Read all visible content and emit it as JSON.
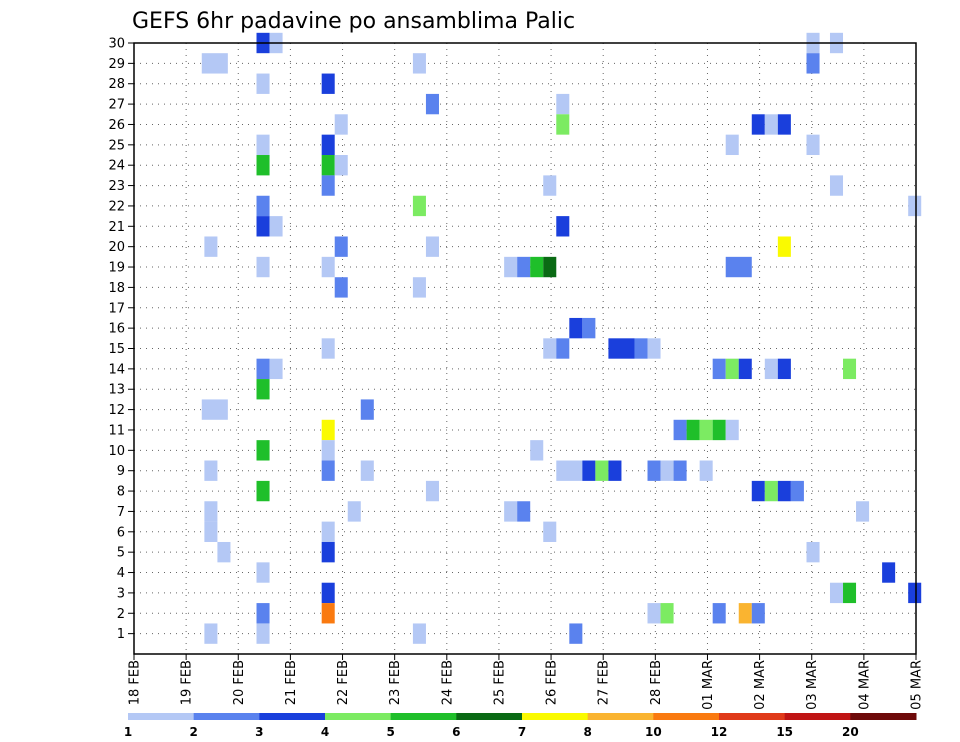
{
  "chart_data": {
    "type": "heatmap",
    "title": "GEFS 6hr padavine po ansamblima Palic",
    "xlabel": "",
    "ylabel": "",
    "x_tick_labels": [
      "18 FEB",
      "19 FEB",
      "20 FEB",
      "21 FEB",
      "22 FEB",
      "23 FEB",
      "24 FEB",
      "25 FEB",
      "26 FEB",
      "27 FEB",
      "28 FEB",
      "01 MAR",
      "02 MAR",
      "03 MAR",
      "04 MAR",
      "05 MAR"
    ],
    "x_range_days": [
      0,
      15
    ],
    "y_tick_labels": [
      "1",
      "2",
      "3",
      "4",
      "5",
      "6",
      "7",
      "8",
      "9",
      "10",
      "11",
      "12",
      "13",
      "14",
      "15",
      "16",
      "17",
      "18",
      "19",
      "20",
      "21",
      "22",
      "23",
      "24",
      "25",
      "26",
      "27",
      "28",
      "29",
      "30"
    ],
    "y_range": [
      0,
      30
    ],
    "grid": true,
    "legend_position": "bottom",
    "legend": {
      "labels": [
        "1",
        "2",
        "3",
        "4",
        "5",
        "6",
        "7",
        "8",
        "10",
        "12",
        "15",
        "20"
      ],
      "colors": [
        "#b4c8f5",
        "#5a82ee",
        "#1a3fdc",
        "#7ceb62",
        "#1fbf2a",
        "#0a6a14",
        "#fafa00",
        "#fab430",
        "#fa7a10",
        "#e03a1a",
        "#c01414",
        "#6e0a0a"
      ]
    },
    "cells": [
      {
        "member": 30,
        "x": [
          2.35,
          2.6
        ],
        "c": 2
      },
      {
        "member": 30,
        "x": [
          2.6,
          2.85
        ],
        "c": 0
      },
      {
        "member": 30,
        "x": [
          12.9,
          13.15
        ],
        "c": 0
      },
      {
        "member": 30,
        "x": [
          13.35,
          13.6
        ],
        "c": 0
      },
      {
        "member": 29,
        "x": [
          1.3,
          1.8
        ],
        "c": 0
      },
      {
        "member": 29,
        "x": [
          5.35,
          5.6
        ],
        "c": 0
      },
      {
        "member": 29,
        "x": [
          12.9,
          13.15
        ],
        "c": 1
      },
      {
        "member": 28,
        "x": [
          2.35,
          2.6
        ],
        "c": 0
      },
      {
        "member": 28,
        "x": [
          3.6,
          3.85
        ],
        "c": 2
      },
      {
        "member": 27,
        "x": [
          5.6,
          5.85
        ],
        "c": 1
      },
      {
        "member": 27,
        "x": [
          8.1,
          8.35
        ],
        "c": 0
      },
      {
        "member": 26,
        "x": [
          3.85,
          4.1
        ],
        "c": 0
      },
      {
        "member": 26,
        "x": [
          8.1,
          8.35
        ],
        "c": 3
      },
      {
        "member": 26,
        "x": [
          11.85,
          12.1
        ],
        "c": 2
      },
      {
        "member": 26,
        "x": [
          12.1,
          12.35
        ],
        "c": 0
      },
      {
        "member": 26,
        "x": [
          12.35,
          12.6
        ],
        "c": 2
      },
      {
        "member": 25,
        "x": [
          2.35,
          2.6
        ],
        "c": 0
      },
      {
        "member": 25,
        "x": [
          3.6,
          3.85
        ],
        "c": 2
      },
      {
        "member": 25,
        "x": [
          11.35,
          11.6
        ],
        "c": 0
      },
      {
        "member": 25,
        "x": [
          12.9,
          13.15
        ],
        "c": 0
      },
      {
        "member": 24,
        "x": [
          2.35,
          2.6
        ],
        "c": 4
      },
      {
        "member": 24,
        "x": [
          3.6,
          3.85
        ],
        "c": 4
      },
      {
        "member": 24,
        "x": [
          3.85,
          4.1
        ],
        "c": 0
      },
      {
        "member": 23,
        "x": [
          3.6,
          3.85
        ],
        "c": 1
      },
      {
        "member": 23,
        "x": [
          7.85,
          8.1
        ],
        "c": 0
      },
      {
        "member": 23,
        "x": [
          13.35,
          13.6
        ],
        "c": 0
      },
      {
        "member": 22,
        "x": [
          2.35,
          2.6
        ],
        "c": 1
      },
      {
        "member": 22,
        "x": [
          5.35,
          5.6
        ],
        "c": 3
      },
      {
        "member": 22,
        "x": [
          14.85,
          15.1
        ],
        "c": 0
      },
      {
        "member": 21,
        "x": [
          2.35,
          2.6
        ],
        "c": 2
      },
      {
        "member": 21,
        "x": [
          2.6,
          2.85
        ],
        "c": 0
      },
      {
        "member": 21,
        "x": [
          8.1,
          8.35
        ],
        "c": 2
      },
      {
        "member": 20,
        "x": [
          1.35,
          1.6
        ],
        "c": 0
      },
      {
        "member": 20,
        "x": [
          3.85,
          4.1
        ],
        "c": 1
      },
      {
        "member": 20,
        "x": [
          5.6,
          5.85
        ],
        "c": 0
      },
      {
        "member": 20,
        "x": [
          12.35,
          12.6
        ],
        "c": 6
      },
      {
        "member": 19,
        "x": [
          2.35,
          2.6
        ],
        "c": 0
      },
      {
        "member": 19,
        "x": [
          3.6,
          3.85
        ],
        "c": 0
      },
      {
        "member": 19,
        "x": [
          7.1,
          7.35
        ],
        "c": 0
      },
      {
        "member": 19,
        "x": [
          7.35,
          7.6
        ],
        "c": 1
      },
      {
        "member": 19,
        "x": [
          7.6,
          7.85
        ],
        "c": 4
      },
      {
        "member": 19,
        "x": [
          7.85,
          8.1
        ],
        "c": 5
      },
      {
        "member": 19,
        "x": [
          11.35,
          11.85
        ],
        "c": 1
      },
      {
        "member": 18,
        "x": [
          3.85,
          4.1
        ],
        "c": 1
      },
      {
        "member": 18,
        "x": [
          5.35,
          5.6
        ],
        "c": 0
      },
      {
        "member": 16,
        "x": [
          8.35,
          8.6
        ],
        "c": 2
      },
      {
        "member": 16,
        "x": [
          8.6,
          8.85
        ],
        "c": 1
      },
      {
        "member": 15,
        "x": [
          3.6,
          3.85
        ],
        "c": 0
      },
      {
        "member": 15,
        "x": [
          7.85,
          8.1
        ],
        "c": 0
      },
      {
        "member": 15,
        "x": [
          8.1,
          8.35
        ],
        "c": 1
      },
      {
        "member": 15,
        "x": [
          9.1,
          9.6
        ],
        "c": 2
      },
      {
        "member": 15,
        "x": [
          9.6,
          9.85
        ],
        "c": 1
      },
      {
        "member": 15,
        "x": [
          9.85,
          10.1
        ],
        "c": 0
      },
      {
        "member": 14,
        "x": [
          2.35,
          2.6
        ],
        "c": 1
      },
      {
        "member": 14,
        "x": [
          2.6,
          2.85
        ],
        "c": 0
      },
      {
        "member": 14,
        "x": [
          11.1,
          11.35
        ],
        "c": 1
      },
      {
        "member": 14,
        "x": [
          11.35,
          11.6
        ],
        "c": 3
      },
      {
        "member": 14,
        "x": [
          11.6,
          11.85
        ],
        "c": 2
      },
      {
        "member": 14,
        "x": [
          12.1,
          12.35
        ],
        "c": 0
      },
      {
        "member": 14,
        "x": [
          12.35,
          12.6
        ],
        "c": 2
      },
      {
        "member": 14,
        "x": [
          13.6,
          13.85
        ],
        "c": 3
      },
      {
        "member": 13,
        "x": [
          2.35,
          2.6
        ],
        "c": 4
      },
      {
        "member": 12,
        "x": [
          1.3,
          1.8
        ],
        "c": 0
      },
      {
        "member": 12,
        "x": [
          4.35,
          4.6
        ],
        "c": 1
      },
      {
        "member": 11,
        "x": [
          3.6,
          3.85
        ],
        "c": 6
      },
      {
        "member": 11,
        "x": [
          10.35,
          10.6
        ],
        "c": 1
      },
      {
        "member": 11,
        "x": [
          10.6,
          10.85
        ],
        "c": 4
      },
      {
        "member": 11,
        "x": [
          10.85,
          11.1
        ],
        "c": 3
      },
      {
        "member": 11,
        "x": [
          11.1,
          11.35
        ],
        "c": 4
      },
      {
        "member": 11,
        "x": [
          11.35,
          11.6
        ],
        "c": 0
      },
      {
        "member": 10,
        "x": [
          2.35,
          2.6
        ],
        "c": 4
      },
      {
        "member": 10,
        "x": [
          3.6,
          3.85
        ],
        "c": 0
      },
      {
        "member": 10,
        "x": [
          7.6,
          7.85
        ],
        "c": 0
      },
      {
        "member": 9,
        "x": [
          1.35,
          1.6
        ],
        "c": 0
      },
      {
        "member": 9,
        "x": [
          3.6,
          3.85
        ],
        "c": 1
      },
      {
        "member": 9,
        "x": [
          4.35,
          4.6
        ],
        "c": 0
      },
      {
        "member": 9,
        "x": [
          8.1,
          8.6
        ],
        "c": 0
      },
      {
        "member": 9,
        "x": [
          8.6,
          8.85
        ],
        "c": 2
      },
      {
        "member": 9,
        "x": [
          8.85,
          9.1
        ],
        "c": 3
      },
      {
        "member": 9,
        "x": [
          9.1,
          9.35
        ],
        "c": 2
      },
      {
        "member": 9,
        "x": [
          9.85,
          10.1
        ],
        "c": 1
      },
      {
        "member": 9,
        "x": [
          10.1,
          10.35
        ],
        "c": 0
      },
      {
        "member": 9,
        "x": [
          10.35,
          10.6
        ],
        "c": 1
      },
      {
        "member": 9,
        "x": [
          10.85,
          11.1
        ],
        "c": 0
      },
      {
        "member": 8,
        "x": [
          2.35,
          2.6
        ],
        "c": 4
      },
      {
        "member": 8,
        "x": [
          5.6,
          5.85
        ],
        "c": 0
      },
      {
        "member": 8,
        "x": [
          11.85,
          12.1
        ],
        "c": 2
      },
      {
        "member": 8,
        "x": [
          12.1,
          12.35
        ],
        "c": 3
      },
      {
        "member": 8,
        "x": [
          12.35,
          12.6
        ],
        "c": 2
      },
      {
        "member": 8,
        "x": [
          12.6,
          12.85
        ],
        "c": 1
      },
      {
        "member": 7,
        "x": [
          1.35,
          1.6
        ],
        "c": 0
      },
      {
        "member": 7,
        "x": [
          4.1,
          4.35
        ],
        "c": 0
      },
      {
        "member": 7,
        "x": [
          7.1,
          7.35
        ],
        "c": 0
      },
      {
        "member": 7,
        "x": [
          7.35,
          7.6
        ],
        "c": 1
      },
      {
        "member": 7,
        "x": [
          13.85,
          14.1
        ],
        "c": 0
      },
      {
        "member": 6,
        "x": [
          1.35,
          1.6
        ],
        "c": 0
      },
      {
        "member": 6,
        "x": [
          3.6,
          3.85
        ],
        "c": 0
      },
      {
        "member": 6,
        "x": [
          7.85,
          8.1
        ],
        "c": 0
      },
      {
        "member": 5,
        "x": [
          1.6,
          1.85
        ],
        "c": 0
      },
      {
        "member": 5,
        "x": [
          3.6,
          3.85
        ],
        "c": 2
      },
      {
        "member": 5,
        "x": [
          12.9,
          13.15
        ],
        "c": 0
      },
      {
        "member": 4,
        "x": [
          2.35,
          2.6
        ],
        "c": 0
      },
      {
        "member": 4,
        "x": [
          14.35,
          14.6
        ],
        "c": 2
      },
      {
        "member": 3,
        "x": [
          3.6,
          3.85
        ],
        "c": 2
      },
      {
        "member": 3,
        "x": [
          13.35,
          13.6
        ],
        "c": 0
      },
      {
        "member": 3,
        "x": [
          13.6,
          13.85
        ],
        "c": 4
      },
      {
        "member": 3,
        "x": [
          14.85,
          15.1
        ],
        "c": 2
      },
      {
        "member": 2,
        "x": [
          2.35,
          2.6
        ],
        "c": 1
      },
      {
        "member": 2,
        "x": [
          3.6,
          3.85
        ],
        "c": 8
      },
      {
        "member": 2,
        "x": [
          9.85,
          10.1
        ],
        "c": 0
      },
      {
        "member": 2,
        "x": [
          10.1,
          10.35
        ],
        "c": 3
      },
      {
        "member": 2,
        "x": [
          11.1,
          11.35
        ],
        "c": 1
      },
      {
        "member": 2,
        "x": [
          11.6,
          11.85
        ],
        "c": 7
      },
      {
        "member": 2,
        "x": [
          11.85,
          12.1
        ],
        "c": 1
      },
      {
        "member": 1,
        "x": [
          1.35,
          1.6
        ],
        "c": 0
      },
      {
        "member": 1,
        "x": [
          2.35,
          2.6
        ],
        "c": 0
      },
      {
        "member": 1,
        "x": [
          5.35,
          5.6
        ],
        "c": 0
      },
      {
        "member": 1,
        "x": [
          8.35,
          8.6
        ],
        "c": 1
      }
    ]
  }
}
